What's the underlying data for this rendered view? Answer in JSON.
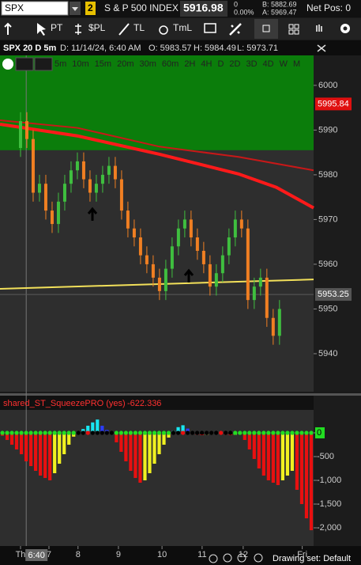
{
  "toolbar": {
    "symbol": "SPX",
    "link": "2",
    "description": "S & P 500 INDEX",
    "last": "5916.98",
    "change": "0",
    "change_pct": "0.00%",
    "bid": "B: 5882.69",
    "ask": "A: 5969.47",
    "net_pos": "Net Pos: 0",
    "tools": [
      "PT",
      "$PL",
      "TL",
      "TmL"
    ]
  },
  "header": {
    "title": "SPX 20 D 5m",
    "date": "D: 11/14/24, 6:40 AM",
    "open": "O: 5983.57",
    "high": "H: 5984.49",
    "low": "L: 5973.71",
    "timeframes": [
      "5m",
      "10m",
      "15m",
      "20m",
      "30m",
      "60m",
      "2H",
      "4H",
      "D",
      "2D",
      "3D",
      "4D",
      "W",
      "M"
    ]
  },
  "chart_data": [
    {
      "type": "candlestick",
      "up_color": "#3fbf3f",
      "down_color": "#f07f22",
      "open": [
        5986,
        5992,
        5988,
        5976,
        5978,
        5972,
        5969,
        5974,
        5978,
        5981,
        5983,
        5979,
        5976,
        5978,
        5980,
        5982,
        5979,
        5972,
        5968,
        5966,
        5962,
        5960,
        5957,
        5954,
        5959,
        5964,
        5968,
        5970,
        5966,
        5963,
        5960,
        5955,
        5958,
        5962,
        5966,
        5970,
        5968,
        5952,
        5955,
        5957,
        5948,
        5944
      ],
      "high": [
        5994,
        5994,
        5990,
        5980,
        5980,
        5974,
        5976,
        5980,
        5983,
        5985,
        5985,
        5981,
        5980,
        5982,
        5984,
        5984,
        5981,
        5974,
        5970,
        5968,
        5964,
        5962,
        5959,
        5961,
        5966,
        5970,
        5972,
        5972,
        5968,
        5965,
        5962,
        5960,
        5964,
        5968,
        5972,
        5972,
        5970,
        5957,
        5959,
        5959,
        5950,
        5952
      ],
      "low": [
        5984,
        5986,
        5974,
        5974,
        5970,
        5967,
        5967,
        5972,
        5976,
        5979,
        5977,
        5974,
        5974,
        5976,
        5978,
        5977,
        5970,
        5966,
        5964,
        5960,
        5958,
        5955,
        5952,
        5952,
        5957,
        5962,
        5966,
        5964,
        5961,
        5958,
        5953,
        5953,
        5956,
        5960,
        5964,
        5966,
        5950,
        5950,
        5953,
        5946,
        5942,
        5942
      ],
      "close": [
        5992,
        5988,
        5976,
        5978,
        5972,
        5969,
        5974,
        5978,
        5981,
        5983,
        5979,
        5976,
        5978,
        5980,
        5982,
        5979,
        5972,
        5968,
        5966,
        5962,
        5960,
        5957,
        5954,
        5959,
        5964,
        5968,
        5970,
        5966,
        5963,
        5960,
        5955,
        5958,
        5962,
        5966,
        5970,
        5968,
        5952,
        5955,
        5957,
        5948,
        5944,
        5950
      ],
      "xlim": [
        -3.25,
        46.4
      ],
      "ylim": [
        5931.5,
        6006.7
      ],
      "yticks": [
        5940,
        5950,
        5960,
        5970,
        5980,
        5990,
        6000
      ],
      "xticks": [
        {
          "value": 0,
          "label": "Th"
        },
        {
          "value": 4.5,
          "label": "7"
        },
        {
          "value": 9.1,
          "label": "8"
        },
        {
          "value": 15.5,
          "label": "9"
        },
        {
          "value": 22.4,
          "label": "10"
        },
        {
          "value": 28.75,
          "label": "11"
        },
        {
          "value": 35.25,
          "label": "12"
        },
        {
          "value": 44.6,
          "label": "Fri"
        }
      ],
      "cursor": {
        "x": 0.9,
        "label": "6:40"
      },
      "zones": [
        {
          "from": 5985.5,
          "to": 6006.7,
          "color": "#0b7d0b"
        }
      ],
      "overlays": [
        {
          "color": "#c81818",
          "width": 2,
          "x": [
            -3.25,
            9,
            22,
            34.5,
            46.4
          ],
          "values": [
            5992.2,
            5990.5,
            5986.3,
            5984,
            5981
          ]
        },
        {
          "color": "#ff1a1a",
          "width": 4,
          "x": [
            -3.25,
            9,
            22,
            34.5,
            40.5,
            46.4
          ],
          "values": [
            5991.3,
            5988.7,
            5984.6,
            5980.2,
            5977.2,
            5972.6
          ]
        },
        {
          "color": "#f2e05a",
          "width": 2,
          "x": [
            -3.25,
            46.4
          ],
          "values": [
            5954.5,
            5956.6
          ]
        }
      ],
      "price_markers": [
        {
          "value": 5995.84,
          "color": "#e01010"
        },
        {
          "value": 5953.25,
          "color": "#555555"
        }
      ]
    },
    {
      "type": "bar",
      "title": "shared_ST_SqueezePRO (yes)",
      "current": -622.336,
      "values": [
        -60,
        -150,
        -250,
        -350,
        -450,
        -600,
        -700,
        -800,
        -900,
        -950,
        -1000,
        -850,
        -650,
        -450,
        -250,
        -80,
        30,
        80,
        150,
        220,
        280,
        150,
        60,
        -20,
        -200,
        -400,
        -600,
        -800,
        -950,
        -1050,
        -1000,
        -850,
        -650,
        -450,
        -250,
        -100,
        40,
        120,
        160,
        90,
        -30,
        -40,
        -50,
        -40,
        -30,
        -20,
        -30,
        -40,
        -50,
        -40,
        -30,
        -150,
        -350,
        -550,
        -750,
        -900,
        -1000,
        -1050,
        -1100,
        -1000,
        -900,
        -800,
        -1200,
        -1500,
        -1800,
        -2050
      ],
      "colors": {
        "pos_up": "#19e6f0",
        "pos_down": "#2a3cff",
        "neg_down": "#e81010",
        "neg_up": "#f0f020"
      },
      "dot_colors": [
        "#22dd22",
        "#22dd22",
        "#22dd22",
        "#22dd22",
        "#22dd22",
        "#22dd22",
        "#22dd22",
        "#22dd22",
        "#22dd22",
        "#22dd22",
        "#22dd22",
        "#22dd22",
        "#22dd22",
        "#22dd22",
        "#22dd22",
        "#22dd22",
        "#000000",
        "#000000",
        "#e81010",
        "#000000",
        "#000000",
        "#000000",
        "#000000",
        "#000000",
        "#22dd22",
        "#22dd22",
        "#22dd22",
        "#22dd22",
        "#22dd22",
        "#22dd22",
        "#22dd22",
        "#22dd22",
        "#22dd22",
        "#22dd22",
        "#22dd22",
        "#22dd22",
        "#000000",
        "#000000",
        "#e81010",
        "#000000",
        "#000000",
        "#000000",
        "#000000",
        "#000000",
        "#000000",
        "#000000",
        "#e81010",
        "#000000",
        "#000000",
        "#22dd22",
        "#22dd22",
        "#22dd22",
        "#22dd22",
        "#22dd22",
        "#22dd22",
        "#22dd22",
        "#22dd22",
        "#22dd22",
        "#22dd22",
        "#22dd22",
        "#22dd22",
        "#22dd22",
        "#22dd22",
        "#22dd22",
        "#22dd22",
        "#22dd22"
      ],
      "ylim": [
        -2383,
        483
      ],
      "yticks": [
        0,
        -500,
        {
          "value": -1000,
          "label": "-1,000"
        },
        {
          "value": -1500,
          "label": "-1,500"
        },
        {
          "value": -2000,
          "label": "-2,000"
        }
      ]
    }
  ],
  "footer": {
    "drawing_set": "Drawing set: Default"
  }
}
